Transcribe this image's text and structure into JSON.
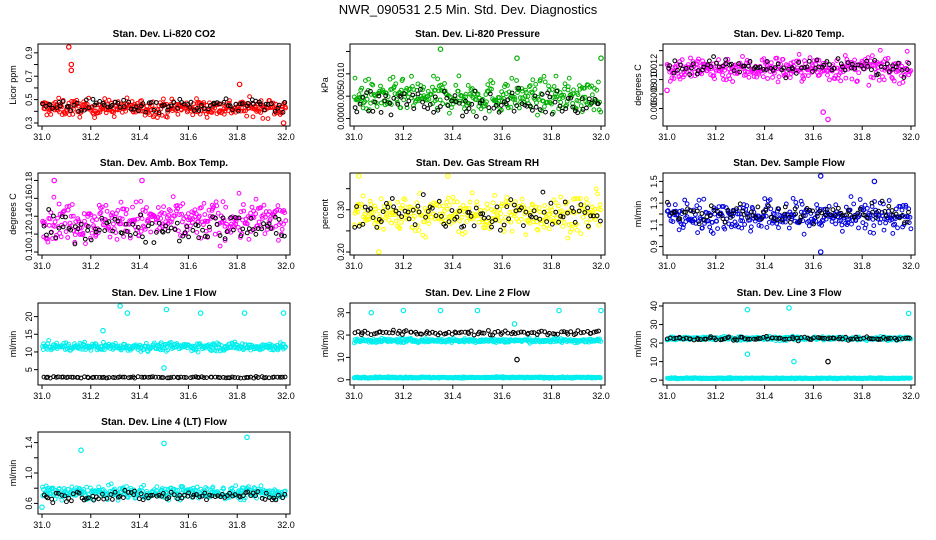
{
  "page_title": "NWR_090531  2.5 Min. Std. Dev. Diagnostics",
  "colors": {
    "background": "#ffffff",
    "frame": "#000000",
    "secondary_series": "#000000"
  },
  "chart_data": [
    {
      "type": "scatter",
      "title": "Stan. Dev. Li-820 CO2",
      "ylabel": "Licor ppm",
      "xlim": [
        31.0,
        32.0
      ],
      "ylim": [
        0.3,
        0.95
      ],
      "xticks": [
        "31.0",
        "31.2",
        "31.4",
        "31.6",
        "31.8",
        "32.0"
      ],
      "yticks": [
        "0.3",
        "0.4",
        "0.5",
        "0.6",
        "0.7",
        "0.8",
        "0.9"
      ],
      "yticks_shown": [
        "0.3",
        "0.5",
        "0.7",
        "0.9"
      ],
      "series": [
        {
          "name": "primary",
          "color": "#ff0000",
          "base": 0.43,
          "spread": 0.05,
          "outliers": [
            [
              31.11,
              0.95
            ],
            [
              31.12,
              0.8
            ],
            [
              31.12,
              0.75
            ],
            [
              31.81,
              0.63
            ],
            [
              31.99,
              0.3
            ]
          ]
        },
        {
          "name": "secondary",
          "color": "#000000",
          "base": 0.45,
          "spread": 0.04,
          "outliers": []
        }
      ]
    },
    {
      "type": "scatter",
      "title": "Stan. Dev. Li-820 Pressure",
      "ylabel": "kPa",
      "xlim": [
        31.0,
        32.0
      ],
      "ylim": [
        -0.001,
        0.016
      ],
      "xticks": [
        "31.0",
        "31.2",
        "31.4",
        "31.6",
        "31.8",
        "32.0"
      ],
      "yticks": [
        "0.000",
        "0.005",
        "0.010",
        "0.015"
      ],
      "yticks_shown": [
        "0.000",
        "0.005",
        "0.010"
      ],
      "series": [
        {
          "name": "primary",
          "color": "#00b000",
          "base": 0.005,
          "spread": 0.0025,
          "outliers": [
            [
              31.35,
              0.0155
            ],
            [
              31.66,
              0.0135
            ],
            [
              32.0,
              0.0135
            ]
          ]
        },
        {
          "name": "secondary",
          "color": "#000000",
          "base": 0.0035,
          "spread": 0.002,
          "outliers": []
        }
      ]
    },
    {
      "type": "scatter",
      "title": "Stan. Dev. Li-820 Temp.",
      "ylabel": "degrees C",
      "xlim": [
        31.0,
        32.0
      ],
      "ylim": [
        0.004,
        0.0145
      ],
      "xticks": [
        "31.0",
        "31.2",
        "31.4",
        "31.6",
        "31.8",
        "32.0"
      ],
      "yticks": [
        "0.006",
        "0.008",
        "0.010",
        "0.012",
        "0.014"
      ],
      "yticks_shown": [
        "0.006",
        "0.008",
        "0.010",
        "0.012"
      ],
      "series": [
        {
          "name": "primary",
          "color": "#ff00ff",
          "base": 0.0115,
          "spread": 0.0012,
          "outliers": [
            [
              31.66,
              0.0045
            ],
            [
              31.64,
              0.0055
            ],
            [
              31.0,
              0.0085
            ]
          ]
        },
        {
          "name": "secondary",
          "color": "#000000",
          "base": 0.0117,
          "spread": 0.0008,
          "outliers": []
        }
      ]
    },
    {
      "type": "scatter",
      "title": "Stan. Dev. Amb. Box Temp.",
      "ylabel": "degrees C",
      "xlim": [
        31.0,
        32.0
      ],
      "ylim": [
        0.1,
        0.185
      ],
      "xticks": [
        "31.0",
        "31.2",
        "31.4",
        "31.6",
        "31.8",
        "32.0"
      ],
      "yticks": [
        "0.10",
        "0.12",
        "0.14",
        "0.16",
        "0.18"
      ],
      "yticks_shown": [
        "0.10",
        "0.12",
        "0.14",
        "0.16",
        "0.18"
      ],
      "series": [
        {
          "name": "primary",
          "color": "#ff00ff",
          "base": 0.135,
          "spread": 0.015,
          "outliers": [
            [
              31.05,
              0.18
            ],
            [
              31.41,
              0.18
            ]
          ]
        },
        {
          "name": "secondary",
          "color": "#000000",
          "base": 0.127,
          "spread": 0.01,
          "outliers": []
        }
      ]
    },
    {
      "type": "scatter",
      "title": "Stan. Dev. Gas Stream RH",
      "ylabel": "percent",
      "xlim": [
        31.0,
        32.0
      ],
      "ylim": [
        0.2,
        0.38
      ],
      "xticks": [
        "31.0",
        "31.2",
        "31.4",
        "31.6",
        "31.8",
        "32.0"
      ],
      "yticks": [
        "0.20",
        "0.25",
        "0.30",
        "0.35"
      ],
      "yticks_shown": [
        "0.20",
        "0.30"
      ],
      "series": [
        {
          "name": "primary",
          "color": "#ffff00",
          "base": 0.29,
          "spread": 0.03,
          "outliers": [
            [
              31.02,
              0.38
            ],
            [
              31.38,
              0.38
            ],
            [
              31.1,
              0.2
            ]
          ]
        },
        {
          "name": "secondary",
          "color": "#000000",
          "base": 0.29,
          "spread": 0.025,
          "outliers": []
        }
      ]
    },
    {
      "type": "scatter",
      "title": "Stan. Dev. Sample Flow",
      "ylabel": "ml/min",
      "xlim": [
        31.0,
        32.0
      ],
      "ylim": [
        0.85,
        1.55
      ],
      "xticks": [
        "31.0",
        "31.2",
        "31.4",
        "31.6",
        "31.8",
        "32.0"
      ],
      "yticks": [
        "0.9",
        "1.0",
        "1.1",
        "1.2",
        "1.3",
        "1.4",
        "1.5"
      ],
      "yticks_shown": [
        "0.9",
        "1.1",
        "1.3",
        "1.5"
      ],
      "series": [
        {
          "name": "primary",
          "color": "#0000dd",
          "base": 1.18,
          "spread": 0.1,
          "outliers": [
            [
              31.63,
              1.55
            ],
            [
              31.85,
              1.5
            ],
            [
              31.63,
              0.85
            ]
          ]
        },
        {
          "name": "secondary",
          "color": "#000000",
          "base": 1.2,
          "spread": 0.06,
          "outliers": []
        }
      ]
    },
    {
      "type": "scatter",
      "title": "Stan. Dev. Line 1 Flow",
      "ylabel": "ml/min",
      "xlim": [
        31.0,
        32.0
      ],
      "ylim": [
        1.5,
        23
      ],
      "xticks": [
        "31.0",
        "31.2",
        "31.4",
        "31.6",
        "31.8",
        "32.0"
      ],
      "yticks": [
        "5",
        "10",
        "15",
        "20"
      ],
      "yticks_shown": [
        "5",
        "10",
        "15",
        "20"
      ],
      "series": [
        {
          "name": "primary",
          "color": "#00eeee",
          "base": 11.5,
          "spread": 0.8,
          "outliers": [
            [
              31.32,
              23
            ],
            [
              31.35,
              21
            ],
            [
              31.51,
              22
            ],
            [
              31.65,
              21
            ],
            [
              31.83,
              21
            ],
            [
              31.99,
              21
            ],
            [
              31.5,
              5.5
            ],
            [
              31.25,
              16
            ]
          ]
        },
        {
          "name": "secondary",
          "color": "#000000",
          "base": 2.8,
          "spread": 0.15,
          "outliers": []
        }
      ]
    },
    {
      "type": "scatter",
      "title": "Stan. Dev. Line 2 Flow",
      "ylabel": "ml/min",
      "xlim": [
        31.0,
        32.0
      ],
      "ylim": [
        -1,
        33
      ],
      "xticks": [
        "31.0",
        "31.2",
        "31.4",
        "31.6",
        "31.8",
        "32.0"
      ],
      "yticks": [
        "0",
        "10",
        "20",
        "30"
      ],
      "yticks_shown": [
        "0",
        "10",
        "20",
        "30"
      ],
      "series": [
        {
          "name": "primary",
          "color": "#00eeee",
          "base": 17.5,
          "spread": 0.6,
          "outliers": [
            [
              31.07,
              30
            ],
            [
              31.2,
              31
            ],
            [
              31.35,
              31
            ],
            [
              31.5,
              31
            ],
            [
              31.65,
              25
            ],
            [
              31.83,
              31
            ],
            [
              32.0,
              31
            ]
          ]
        },
        {
          "name": "primary_low",
          "color": "#00eeee",
          "base": 1.0,
          "spread": 0.2,
          "outliers": []
        },
        {
          "name": "secondary",
          "color": "#000000",
          "base": 21,
          "spread": 0.7,
          "outliers": [
            [
              31.66,
              9
            ]
          ]
        }
      ]
    },
    {
      "type": "scatter",
      "title": "Stan. Dev. Line 3 Flow",
      "ylabel": "ml/min",
      "xlim": [
        31.0,
        32.0
      ],
      "ylim": [
        -1,
        40
      ],
      "xticks": [
        "31.0",
        "31.2",
        "31.4",
        "31.6",
        "31.8",
        "32.0"
      ],
      "yticks": [
        "0",
        "10",
        "20",
        "30",
        "40"
      ],
      "yticks_shown": [
        "0",
        "10",
        "20",
        "30",
        "40"
      ],
      "series": [
        {
          "name": "primary",
          "color": "#00eeee",
          "base": 22.5,
          "spread": 0.7,
          "outliers": [
            [
              31.33,
              38
            ],
            [
              31.5,
              39
            ],
            [
              31.99,
              36
            ],
            [
              31.52,
              10
            ],
            [
              31.33,
              14
            ]
          ]
        },
        {
          "name": "primary_low",
          "color": "#00eeee",
          "base": 1.0,
          "spread": 0.2,
          "outliers": []
        },
        {
          "name": "secondary",
          "color": "#000000",
          "base": 22.5,
          "spread": 0.7,
          "outliers": [
            [
              31.66,
              10
            ]
          ]
        }
      ]
    },
    {
      "type": "scatter",
      "title": "Stan. Dev. Line 4 (LT) Flow",
      "ylabel": "ml/min",
      "xlim": [
        31.0,
        32.0
      ],
      "ylim": [
        0.5,
        1.5
      ],
      "xticks": [
        "31.0",
        "31.2",
        "31.4",
        "31.6",
        "31.8",
        "32.0"
      ],
      "yticks": [
        "0.6",
        "0.8",
        "1.0",
        "1.2",
        "1.4"
      ],
      "yticks_shown": [
        "0.6",
        "1.0",
        "1.4"
      ],
      "series": [
        {
          "name": "primary",
          "color": "#00eeee",
          "base": 0.74,
          "spread": 0.06,
          "outliers": [
            [
              31.16,
              1.3
            ],
            [
              31.5,
              1.39
            ],
            [
              31.84,
              1.47
            ],
            [
              31.0,
              0.55
            ]
          ]
        },
        {
          "name": "secondary",
          "color": "#000000",
          "base": 0.7,
          "spread": 0.05,
          "outliers": []
        }
      ]
    }
  ]
}
